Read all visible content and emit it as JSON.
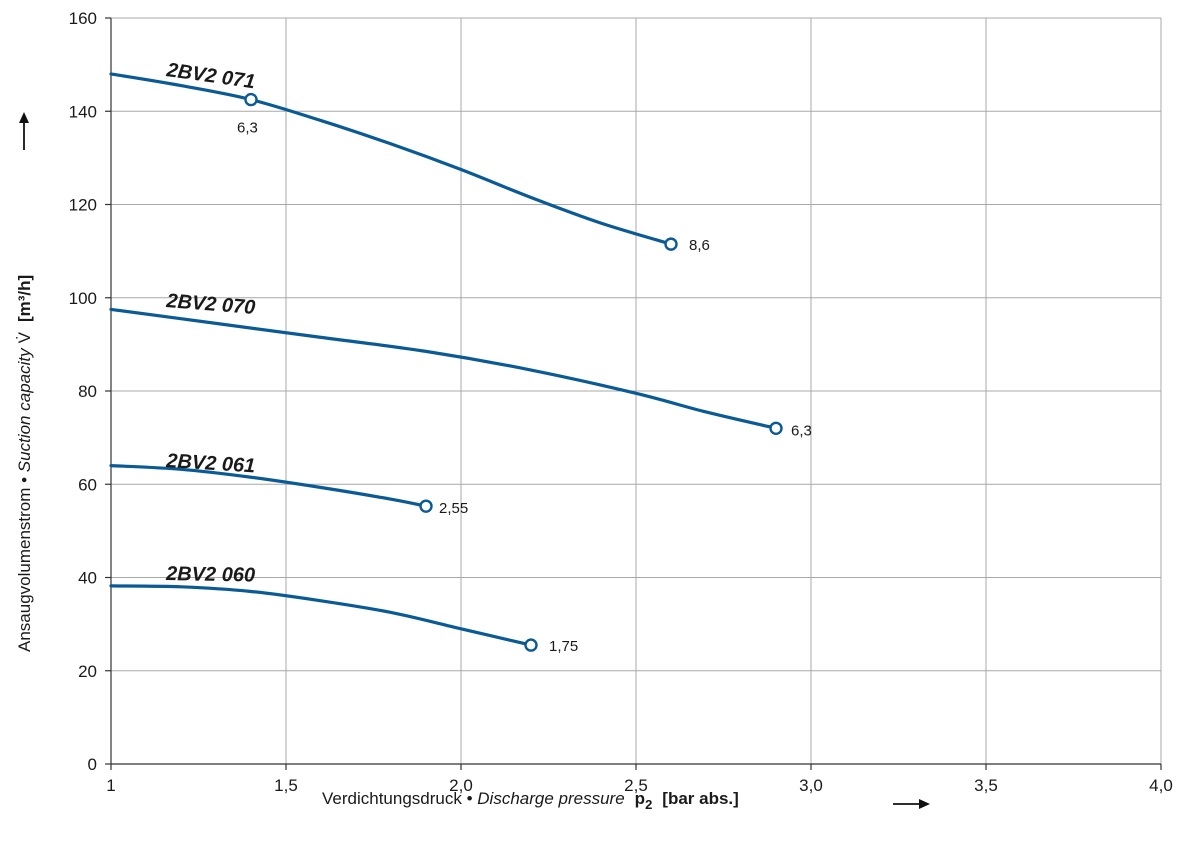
{
  "chart_data": {
    "type": "line",
    "title": "",
    "xlabel": {
      "part1": "Verdichtungsdruck • ",
      "part2": "Discharge pressure",
      "symbol": "p",
      "subscript": "2",
      "unit": "[bar abs.]"
    },
    "ylabel": {
      "part1": "Ansaugvolumenstrom • ",
      "part2": "Suction capacity",
      "symbol": "V̇",
      "unit": "[m³/h]"
    },
    "xlim": [
      1,
      4
    ],
    "ylim": [
      0,
      160
    ],
    "x_ticks": [
      {
        "value": 1,
        "label": "1"
      },
      {
        "value": 1.5,
        "label": "1,5"
      },
      {
        "value": 2,
        "label": "2,0"
      },
      {
        "value": 2.5,
        "label": "2,5"
      },
      {
        "value": 3,
        "label": "3,0"
      },
      {
        "value": 3.5,
        "label": "3,5"
      },
      {
        "value": 4,
        "label": "4,0"
      }
    ],
    "y_ticks": [
      {
        "value": 0,
        "label": "0"
      },
      {
        "value": 20,
        "label": "20"
      },
      {
        "value": 40,
        "label": "40"
      },
      {
        "value": 60,
        "label": "60"
      },
      {
        "value": 80,
        "label": "80"
      },
      {
        "value": 100,
        "label": "100"
      },
      {
        "value": 120,
        "label": "120"
      },
      {
        "value": 140,
        "label": "140"
      },
      {
        "value": 160,
        "label": "160"
      }
    ],
    "grid": true,
    "line_color": "#0a5a96",
    "series": [
      {
        "name": "2BV2 071",
        "x": [
          1.0,
          1.2,
          1.4,
          1.6,
          1.8,
          2.0,
          2.2,
          2.4,
          2.6
        ],
        "y": [
          148,
          145.5,
          142.5,
          138,
          133,
          127.5,
          121.5,
          116,
          111.5
        ],
        "markers": [
          {
            "x": 1.4,
            "y": 142.5,
            "label": "6,3"
          },
          {
            "x": 2.6,
            "y": 111.5,
            "label": "8,6"
          }
        ]
      },
      {
        "name": "2BV2 070",
        "x": [
          1.0,
          1.3,
          1.6,
          1.9,
          2.2,
          2.5,
          2.7,
          2.9
        ],
        "y": [
          97.5,
          94.5,
          91.5,
          88.5,
          84.5,
          79.5,
          75.5,
          72
        ],
        "markers": [
          {
            "x": 2.9,
            "y": 72,
            "label": "6,3"
          }
        ]
      },
      {
        "name": "2BV2 061",
        "x": [
          1.0,
          1.2,
          1.4,
          1.6,
          1.8,
          1.9
        ],
        "y": [
          64,
          63.2,
          61.5,
          59.3,
          56.8,
          55.3
        ],
        "markers": [
          {
            "x": 1.9,
            "y": 55.3,
            "label": "2,55"
          }
        ]
      },
      {
        "name": "2BV2 060",
        "x": [
          1.0,
          1.2,
          1.4,
          1.6,
          1.8,
          2.0,
          2.2
        ],
        "y": [
          38.2,
          38,
          37,
          35,
          32.5,
          29,
          25.5
        ],
        "markers": [
          {
            "x": 2.2,
            "y": 25.5,
            "label": "1,75"
          }
        ]
      }
    ]
  }
}
